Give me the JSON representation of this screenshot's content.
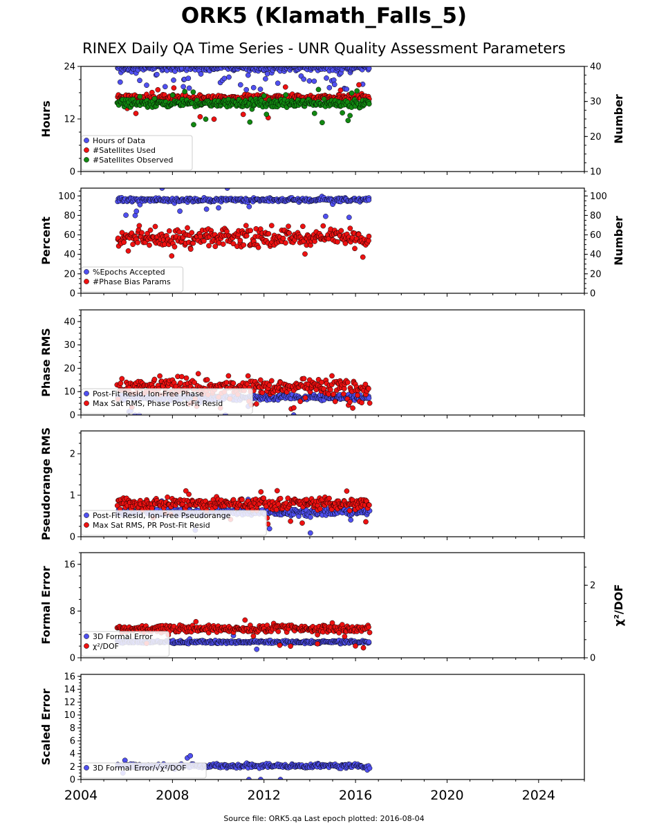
{
  "title": "ORK5 (Klamath_Falls_5)",
  "subtitle": "RINEX Daily QA Time Series - UNR Quality Assessment Parameters",
  "footer": "Source file: ORK5.qa Last epoch plotted: 2016-08-04",
  "colors": {
    "blue": "#5050f0",
    "red": "#ee1111",
    "green": "#118811"
  },
  "x_ticks": [
    "2004",
    "2008",
    "2012",
    "2016",
    "2020",
    "2024"
  ],
  "chart_data": [
    {
      "type": "scatter",
      "name": "hours-satellites",
      "ylabel": "Hours",
      "ylabel_right": "Number",
      "ylim": [
        0,
        24
      ],
      "ylim_right": [
        10,
        40
      ],
      "yticks": [
        "0",
        "12",
        "24"
      ],
      "yticks_right": [
        "10",
        "20",
        "30",
        "40"
      ],
      "legend": [
        "Hours of Data",
        "#Satellites Used",
        "#Satellites Observed"
      ],
      "legend_position": "lower-left",
      "series": [
        {
          "name": "Hours of Data",
          "axis": "left",
          "color": "blue",
          "base": 23.7,
          "x": [
            2005.6,
            2016.6
          ]
        },
        {
          "name": "#Satellites Used",
          "axis": "right",
          "color": "red",
          "base": 31,
          "x": [
            2005.6,
            2016.6
          ]
        },
        {
          "name": "#Satellites Observed",
          "axis": "right",
          "color": "green",
          "base": 29.5,
          "x": [
            2005.6,
            2016.6
          ]
        }
      ]
    },
    {
      "type": "scatter",
      "name": "epochs-bias",
      "ylabel": "Percent",
      "ylabel_right": "Number",
      "ylim": [
        0,
        108
      ],
      "ylim_right": [
        0,
        108
      ],
      "yticks": [
        "0",
        "20",
        "40",
        "60",
        "80",
        "100"
      ],
      "yticks_right": [
        "0",
        "20",
        "40",
        "60",
        "80",
        "100"
      ],
      "legend": [
        "%Epochs Accepted",
        "#Phase Bias Params"
      ],
      "legend_position": "lower-left",
      "series": [
        {
          "name": "%Epochs Accepted",
          "color": "blue",
          "base": 96,
          "x": [
            2005.6,
            2016.6
          ]
        },
        {
          "name": "#Phase Bias Params",
          "color": "red",
          "base": 57,
          "x": [
            2005.6,
            2016.6
          ]
        }
      ]
    },
    {
      "type": "scatter",
      "name": "phase-rms",
      "ylabel": "Phase RMS",
      "ylim": [
        0,
        45
      ],
      "yticks": [
        "0",
        "10",
        "20",
        "30",
        "40"
      ],
      "legend": [
        "Post-Fit Resid, Ion-Free Phase",
        "Max Sat RMS, Phase Post-Fit Resid"
      ],
      "legend_position": "lower-left",
      "series": [
        {
          "name": "Post-Fit Resid, Ion-Free Phase",
          "color": "blue",
          "base": 7.5,
          "x": [
            2005.6,
            2016.6
          ]
        },
        {
          "name": "Max Sat RMS, Phase Post-Fit Resid",
          "color": "red",
          "base": 12,
          "x": [
            2005.6,
            2016.6
          ]
        }
      ]
    },
    {
      "type": "scatter",
      "name": "pseudorange-rms",
      "ylabel": "Pseudorange RMS",
      "ylim": [
        0,
        2.55
      ],
      "yticks": [
        "0",
        "1",
        "2"
      ],
      "legend": [
        "Post-Fit Resid, Ion-Free Pseudorange",
        "Max Sat RMS, PR Post-Fit Resid"
      ],
      "legend_position": "lower-left",
      "series": [
        {
          "name": "Post-Fit Resid, Ion-Free Pseudorange",
          "color": "blue",
          "base": 0.6,
          "x": [
            2005.6,
            2016.6
          ]
        },
        {
          "name": "Max Sat RMS, PR Post-Fit Resid",
          "color": "red",
          "base": 0.8,
          "x": [
            2005.6,
            2016.6
          ]
        }
      ]
    },
    {
      "type": "scatter",
      "name": "formal-error",
      "ylabel": "Formal Error",
      "ylabel_right": "χ²/DOF",
      "ylim": [
        0,
        18
      ],
      "ylim_right": [
        0,
        2.9
      ],
      "yticks": [
        "0",
        "8",
        "16"
      ],
      "yticks_right": [
        "0",
        "2"
      ],
      "legend": [
        "3D Formal Error",
        "χ²/DOF"
      ],
      "legend_position": "lower-left",
      "series": [
        {
          "name": "3D Formal Error",
          "axis": "left",
          "color": "blue",
          "base": 2.7,
          "x": [
            2005.6,
            2016.6
          ]
        },
        {
          "name": "χ²/DOF",
          "axis": "right",
          "color": "red",
          "base": 0.8,
          "x": [
            2005.6,
            2016.6
          ]
        }
      ]
    },
    {
      "type": "scatter",
      "name": "scaled-error",
      "ylabel": "Scaled Error",
      "ylim": [
        0,
        16.3
      ],
      "yticks": [
        "0",
        "2",
        "4",
        "6",
        "8",
        "10",
        "12",
        "14",
        "16"
      ],
      "legend": [
        "3D Formal Error/√χ²/DOF"
      ],
      "legend_position": "lower-left",
      "series": [
        {
          "name": "3D Formal Error/√χ²/DOF",
          "color": "blue",
          "base": 2.1,
          "x": [
            2005.6,
            2016.6
          ]
        }
      ]
    }
  ],
  "x_range": [
    2004,
    2026
  ]
}
